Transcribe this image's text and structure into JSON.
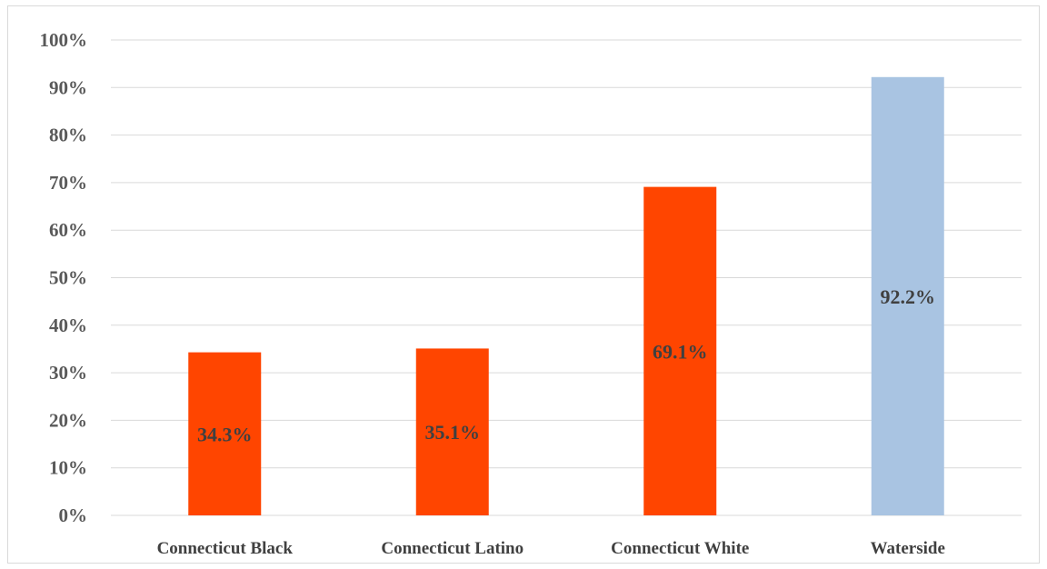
{
  "chart_data": {
    "type": "bar",
    "categories": [
      "Connecticut Black",
      "Connecticut Latino",
      "Connecticut White",
      "Waterside"
    ],
    "values": [
      34.3,
      35.1,
      69.1,
      92.2
    ],
    "data_labels": [
      "34.3%",
      "35.1%",
      "69.1%",
      "92.2%"
    ],
    "bar_colors": [
      "#ff4500",
      "#ff4500",
      "#ff4500",
      "#a9c4e2"
    ],
    "ylim": [
      0,
      100
    ],
    "yticks": [
      0,
      10,
      20,
      30,
      40,
      50,
      60,
      70,
      80,
      90,
      100
    ],
    "ytick_labels": [
      "0%",
      "10%",
      "20%",
      "30%",
      "40%",
      "50%",
      "60%",
      "70%",
      "80%",
      "90%",
      "100%"
    ],
    "grid": true,
    "legend": "none",
    "title": "",
    "xlabel": "",
    "ylabel": ""
  }
}
